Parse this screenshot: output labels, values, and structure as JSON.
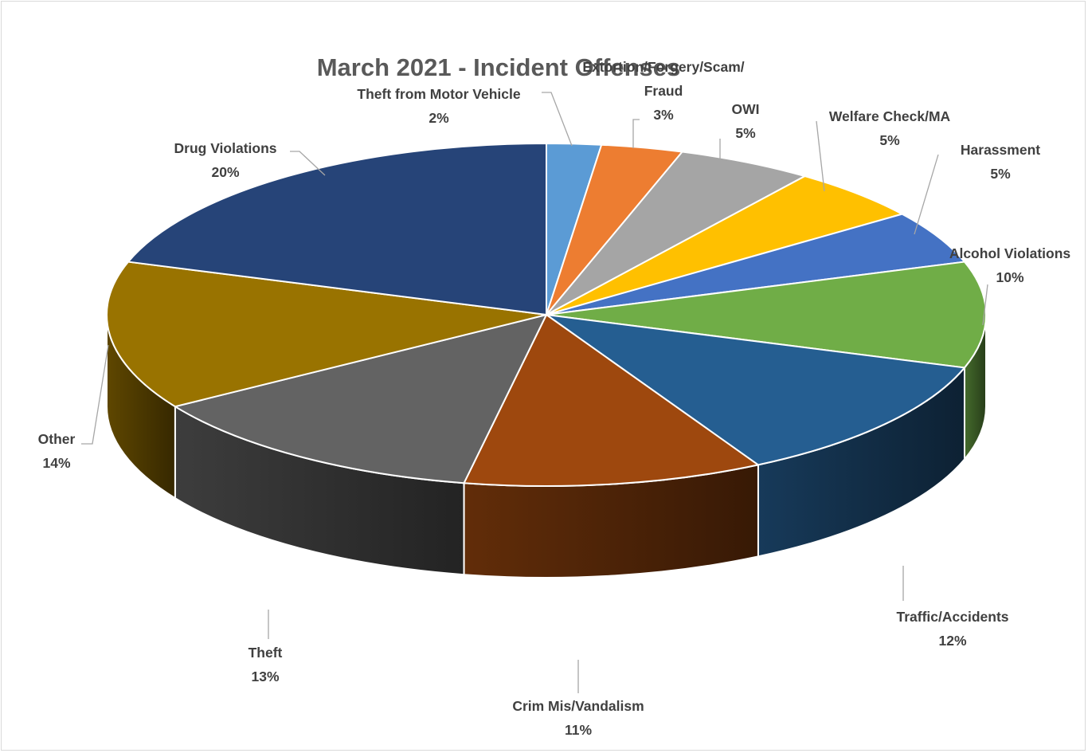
{
  "chart_data": {
    "type": "pie",
    "style": "3d",
    "title": "March 2021 - Incident Offenses",
    "slices": [
      {
        "name": "Theft from Motor Vehicle",
        "value": 2,
        "label": "2%",
        "color": "#5b9bd5"
      },
      {
        "name": "Extortion/Forgery/Scam/ Fraud",
        "name_lines": [
          "Extortion/Forgery/Scam/",
          "Fraud"
        ],
        "value": 3,
        "label": "3%",
        "color": "#ed7d31"
      },
      {
        "name": "OWI",
        "value": 5,
        "label": "5%",
        "color": "#a5a5a5"
      },
      {
        "name": "Welfare Check/MA",
        "value": 5,
        "label": "5%",
        "color": "#ffc000"
      },
      {
        "name": "Harassment",
        "value": 5,
        "label": "5%",
        "color": "#4472c4"
      },
      {
        "name": "Alcohol Violations",
        "value": 10,
        "label": "10%",
        "color": "#70ad47"
      },
      {
        "name": "Traffic/Accidents",
        "value": 12,
        "label": "12%",
        "color": "#255e91"
      },
      {
        "name": "Crim Mis/Vandalism",
        "value": 11,
        "label": "11%",
        "color": "#9e480e"
      },
      {
        "name": "Theft",
        "value": 13,
        "label": "13%",
        "color": "#636363"
      },
      {
        "name": "Other",
        "value": 14,
        "label": "14%",
        "color": "#997300"
      },
      {
        "name": "Drug Violations",
        "value": 20,
        "label": "20%",
        "color": "#264478"
      }
    ],
    "legend": "none"
  }
}
